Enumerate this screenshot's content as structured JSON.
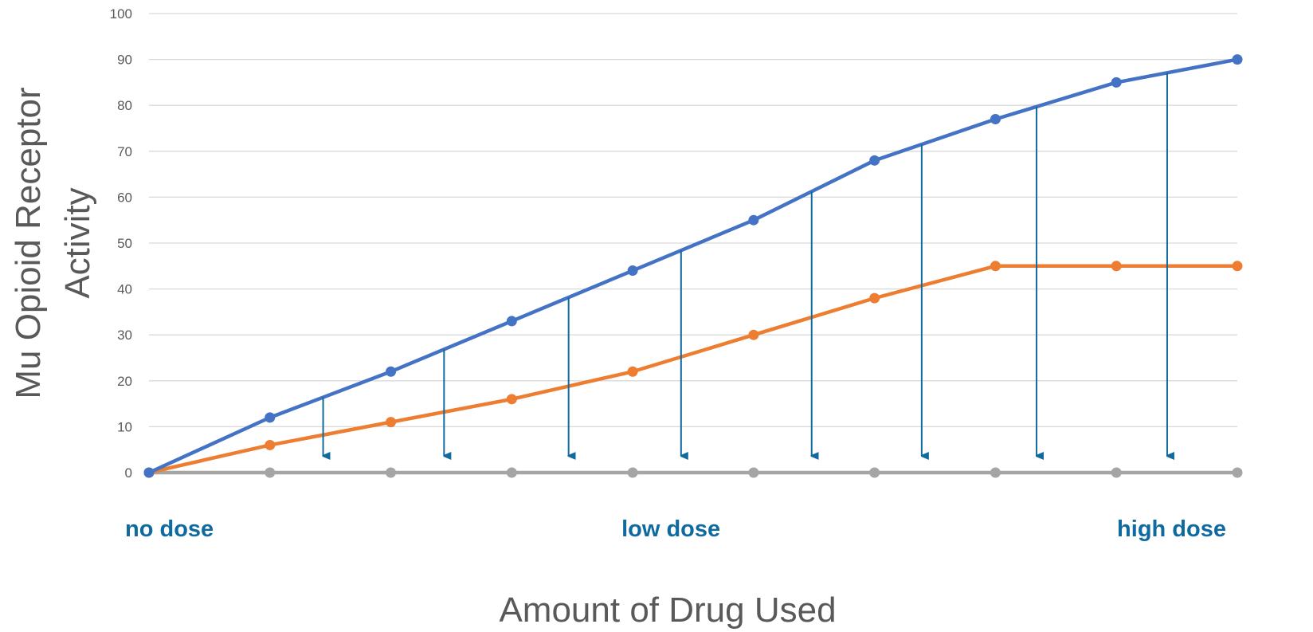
{
  "chart_data": {
    "type": "line",
    "title": "",
    "xlabel": "Amount of Drug Used",
    "ylabel_line1": "Mu Opioid Receptor",
    "ylabel_line2": "Activity",
    "ylim": [
      0,
      100
    ],
    "yticks": [
      0,
      10,
      20,
      30,
      40,
      50,
      60,
      70,
      80,
      90,
      100
    ],
    "grid": true,
    "x": [
      0,
      1,
      2,
      3,
      4,
      5,
      6,
      7,
      8,
      9
    ],
    "series": [
      {
        "color": "#4472c4",
        "values": [
          0,
          12,
          22,
          33,
          44,
          55,
          68,
          77,
          85,
          90
        ]
      },
      {
        "color": "#ed7d31",
        "values": [
          0,
          6,
          11,
          16,
          22,
          30,
          38,
          45,
          45,
          45
        ]
      },
      {
        "color": "#a5a5a5",
        "values": [
          0,
          0,
          0,
          0,
          0,
          0,
          0,
          0,
          0,
          0
        ]
      }
    ],
    "arrows": {
      "color": "#0f6aa0",
      "x": [
        1.44,
        2.44,
        3.47,
        4.4,
        5.48,
        6.39,
        7.34,
        8.42
      ]
    },
    "dose_labels": [
      {
        "text": "no dose",
        "x": 0
      },
      {
        "text": "low dose",
        "x": 4
      },
      {
        "text": "high dose",
        "x": 9
      }
    ]
  }
}
